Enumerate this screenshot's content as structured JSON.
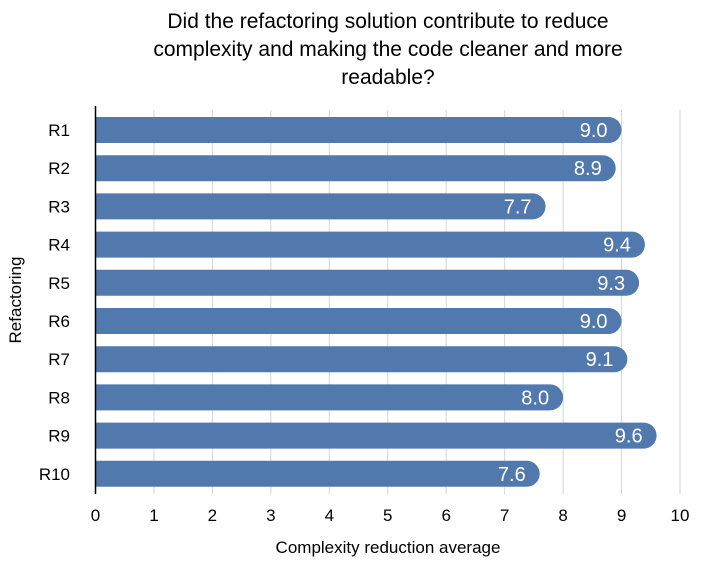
{
  "chart_data": {
    "type": "bar",
    "orientation": "horizontal",
    "title_lines": [
      "Did the refactoring solution contribute to reduce",
      "complexity and making the code cleaner and more",
      "readable?"
    ],
    "categories": [
      "R1",
      "R2",
      "R3",
      "R4",
      "R5",
      "R6",
      "R7",
      "R8",
      "R9",
      "R10"
    ],
    "values": [
      9.0,
      8.9,
      7.7,
      9.4,
      9.3,
      9.0,
      9.1,
      8.0,
      9.6,
      7.6
    ],
    "value_labels": [
      "9.0",
      "8.9",
      "7.7",
      "9.4",
      "9.3",
      "9.0",
      "9.1",
      "8.0",
      "9.6",
      "7.6"
    ],
    "xlabel": "Complexity reduction average",
    "ylabel": "Refactoring",
    "xlim": [
      0,
      10
    ],
    "x_ticks": [
      "0",
      "1",
      "2",
      "3",
      "4",
      "5",
      "6",
      "7",
      "8",
      "9",
      "10"
    ],
    "grid": "vertical",
    "legend": "none",
    "colors": {
      "bar": "#5279ad",
      "gridline": "#d6d6d6",
      "axis": "#000000",
      "data_label": "#ffffff"
    }
  }
}
